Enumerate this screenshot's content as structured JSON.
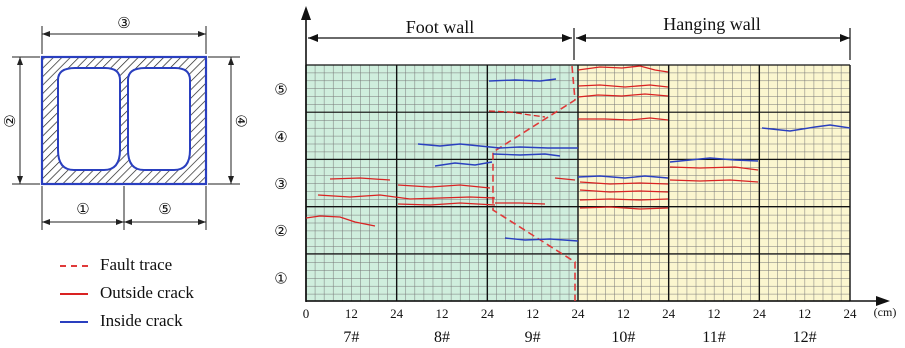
{
  "section": {
    "dim_labels": {
      "top": "③",
      "left": "②",
      "right": "④",
      "bottom_left": "①",
      "bottom_right": "⑤"
    }
  },
  "legend": {
    "fault": {
      "label": "Fault trace",
      "color": "#e03a3a"
    },
    "outside": {
      "label": "Outside crack",
      "color": "#d92222"
    },
    "inside": {
      "label": "Inside crack",
      "color": "#2a3fbf"
    }
  },
  "chart": {
    "foot_wall": "Foot wall",
    "hanging_wall": "Hanging wall",
    "unit": "(cm)",
    "row_labels": [
      "①",
      "②",
      "③",
      "④",
      "⑤"
    ],
    "tick_labels": [
      "0",
      "12",
      "24",
      "12",
      "24",
      "12",
      "24",
      "12",
      "24",
      "12",
      "24",
      "12",
      "24"
    ],
    "segments": [
      "7#",
      "8#",
      "9#",
      "10#",
      "11#",
      "12#"
    ],
    "colors": {
      "foot": "#cfeedd",
      "hanging": "#fbf6cf"
    }
  }
}
